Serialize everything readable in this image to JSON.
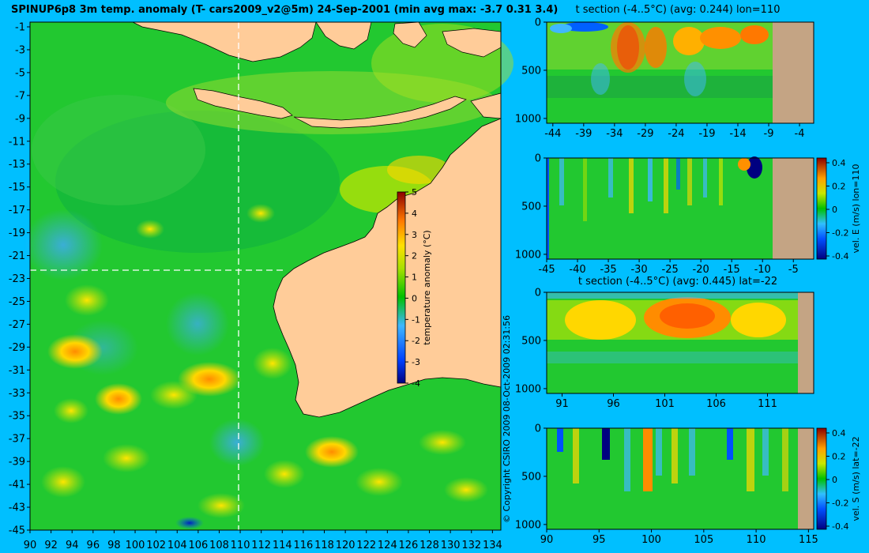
{
  "title": "SPINUP6p8 3m temp. anomaly (T- cars2009_v2@5m) 24-Sep-2001 (min avg max: -3.7 0.31 3.4)",
  "copyright": "© Copyright CSIRO 2009    08-Oct-2009 02:31:56",
  "colors": {
    "background": "#00BFFF",
    "land": "#FFCC99",
    "section_land": "#C4A484",
    "crosshair": "#FFFFFF"
  },
  "chart_data": [
    {
      "type": "heatmap",
      "id": "main_map",
      "title": "SPINUP6p8 3m temp. anomaly (T- cars2009_v2@5m) 24-Sep-2001 (min avg max: -3.7 0.31 3.4)",
      "xlim": [
        90,
        135
      ],
      "ylim": [
        -45,
        0
      ],
      "x_ticks": [
        "90",
        "92",
        "94",
        "96",
        "98",
        "100",
        "102",
        "104",
        "106",
        "108",
        "110",
        "112",
        "114",
        "116",
        "118",
        "120",
        "122",
        "124",
        "126",
        "128",
        "130",
        "132",
        "134"
      ],
      "y_ticks": [
        "-1",
        "-3",
        "-5",
        "-7",
        "-9",
        "-11",
        "-13",
        "-15",
        "-17",
        "-19",
        "-21",
        "-23",
        "-25",
        "-27",
        "-29",
        "-31",
        "-33",
        "-35",
        "-37",
        "-39",
        "-41",
        "-43",
        "-45"
      ],
      "crosshair": {
        "lon": 110,
        "lat": -22
      },
      "colorbar": {
        "label": "temperature anomaly (°C)",
        "ticks": [
          "5",
          "4",
          "3",
          "2",
          "1",
          "0",
          "-1",
          "-2",
          "-3",
          "-4"
        ],
        "range": [
          -4,
          5
        ]
      },
      "stats": {
        "min": -3.7,
        "avg": 0.31,
        "max": 3.4
      }
    },
    {
      "type": "heatmap",
      "id": "t_section_lon",
      "title": "t section (-4..5°C) (avg: 0.244) lon=110",
      "xlim": [
        -45,
        -2
      ],
      "ylim": [
        1050,
        0
      ],
      "x_ticks": [
        "-44",
        "-39",
        "-34",
        "-29",
        "-24",
        "-19",
        "-14",
        "-9",
        "-4"
      ],
      "y_ticks": [
        "0",
        "500",
        "1000"
      ]
    },
    {
      "type": "heatmap",
      "id": "vel_e_section",
      "title": "",
      "xlim": [
        -45,
        -2
      ],
      "ylim": [
        1050,
        0
      ],
      "x_ticks": [
        "-45",
        "-40",
        "-35",
        "-30",
        "-25",
        "-20",
        "-15",
        "-10",
        "-5"
      ],
      "y_ticks": [
        "0",
        "500",
        "1000"
      ],
      "colorbar": {
        "label": "vel. E (m/s) lon=110",
        "ticks": [
          "0.4",
          "0.2",
          "0",
          "-0.2",
          "-0.4"
        ],
        "range": [
          -0.4,
          0.4
        ]
      }
    },
    {
      "type": "heatmap",
      "id": "t_section_lat",
      "title": "t section (-4..5°C) (avg: 0.445) lat=-22",
      "xlim": [
        89.5,
        115.5
      ],
      "ylim": [
        1050,
        0
      ],
      "x_ticks": [
        "91",
        "96",
        "101",
        "106",
        "111"
      ],
      "y_ticks": [
        "0",
        "500",
        "1000"
      ]
    },
    {
      "type": "heatmap",
      "id": "vel_s_section",
      "title": "",
      "xlim": [
        90,
        115
      ],
      "ylim": [
        1050,
        0
      ],
      "x_ticks": [
        "90",
        "95",
        "100",
        "105",
        "110",
        "115"
      ],
      "y_ticks": [
        "0",
        "500",
        "1000"
      ],
      "colorbar": {
        "label": "vel. S (m/s) lat=-22",
        "ticks": [
          "0.4",
          "0.2",
          "0",
          "-0.2",
          "-0.4"
        ],
        "range": [
          -0.4,
          0.4
        ]
      }
    }
  ]
}
